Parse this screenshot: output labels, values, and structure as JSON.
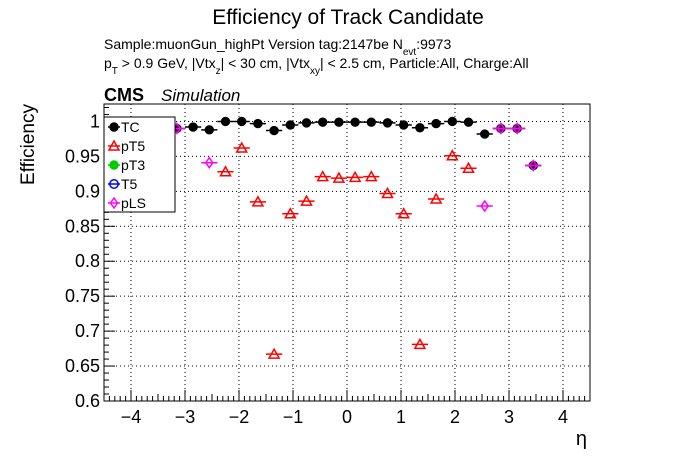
{
  "chart_data": {
    "type": "scatter",
    "title": "Efficiency of Track Candidate",
    "subtitle": {
      "line1_a": "Sample:muonGun_highPt   Version tag:2147be  N",
      "line1_sub": "evt",
      "line1_b": ":9973",
      "line2_p": "p",
      "line2_p_sub": "T",
      "line2_a": " > 0.9 GeV, |Vtx",
      "line2_z_sub": "z",
      "line2_b": "| < 30 cm, |Vtx",
      "line2_xy_sub": "xy",
      "line2_c": "| < 2.5 cm, Particle:All, Charge:All"
    },
    "cms_label": "CMS",
    "sim_label": "Simulation",
    "xlabel": "η",
    "ylabel": "Efficiency",
    "xlim": [
      -4.5,
      4.5
    ],
    "ylim": [
      0.6,
      1.025
    ],
    "x_ticks": [
      "−4",
      "−3",
      "−2",
      "−1",
      "0",
      "1",
      "2",
      "3",
      "4"
    ],
    "x_tick_values": [
      -4,
      -3,
      -2,
      -1,
      0,
      1,
      2,
      3,
      4
    ],
    "y_ticks": [
      "0.6",
      "0.65",
      "0.7",
      "0.75",
      "0.8",
      "0.85",
      "0.9",
      "0.95",
      "1"
    ],
    "y_tick_values": [
      0.6,
      0.65,
      0.7,
      0.75,
      0.8,
      0.85,
      0.9,
      0.95,
      1.0
    ],
    "grid": true,
    "legend_position": "top-left",
    "series": [
      {
        "name": "TC",
        "color": "#000000",
        "marker": "filled-circle",
        "points": [
          {
            "x": -3.15,
            "y": 0.99
          },
          {
            "x": -2.85,
            "y": 0.992
          },
          {
            "x": -2.55,
            "y": 0.988
          },
          {
            "x": -2.25,
            "y": 1.0
          },
          {
            "x": -1.95,
            "y": 1.0
          },
          {
            "x": -1.65,
            "y": 0.997
          },
          {
            "x": -1.35,
            "y": 0.987
          },
          {
            "x": -1.05,
            "y": 0.995
          },
          {
            "x": -0.75,
            "y": 0.998
          },
          {
            "x": -0.45,
            "y": 0.999
          },
          {
            "x": -0.15,
            "y": 0.999
          },
          {
            "x": 0.15,
            "y": 0.999
          },
          {
            "x": 0.45,
            "y": 0.999
          },
          {
            "x": 0.75,
            "y": 0.998
          },
          {
            "x": 1.05,
            "y": 0.995
          },
          {
            "x": 1.35,
            "y": 0.991
          },
          {
            "x": 1.65,
            "y": 0.997
          },
          {
            "x": 1.95,
            "y": 1.0
          },
          {
            "x": 2.25,
            "y": 0.999
          },
          {
            "x": 2.55,
            "y": 0.982
          },
          {
            "x": 2.85,
            "y": 0.99
          },
          {
            "x": 3.15,
            "y": 0.99
          },
          {
            "x": 3.45,
            "y": 0.937
          }
        ]
      },
      {
        "name": "pT5",
        "color": "#ff0000",
        "marker": "open-triangle",
        "points": [
          {
            "x": -2.25,
            "y": 0.928
          },
          {
            "x": -1.95,
            "y": 0.962
          },
          {
            "x": -1.65,
            "y": 0.885
          },
          {
            "x": -1.35,
            "y": 0.667
          },
          {
            "x": -1.05,
            "y": 0.868
          },
          {
            "x": -0.75,
            "y": 0.886
          },
          {
            "x": -0.45,
            "y": 0.921
          },
          {
            "x": -0.15,
            "y": 0.919
          },
          {
            "x": 0.15,
            "y": 0.92
          },
          {
            "x": 0.45,
            "y": 0.921
          },
          {
            "x": 0.75,
            "y": 0.897
          },
          {
            "x": 1.05,
            "y": 0.868
          },
          {
            "x": 1.35,
            "y": 0.681
          },
          {
            "x": 1.65,
            "y": 0.889
          },
          {
            "x": 1.95,
            "y": 0.951
          },
          {
            "x": 2.25,
            "y": 0.933
          }
        ]
      },
      {
        "name": "pT3",
        "color": "#00cc00",
        "marker": "filled-circle",
        "points": []
      },
      {
        "name": "T5",
        "color": "#0000ff",
        "marker": "open-circle",
        "points": []
      },
      {
        "name": "pLS",
        "color": "#ff00ff",
        "marker": "open-diamond",
        "points": [
          {
            "x": -3.15,
            "y": 0.99
          },
          {
            "x": -2.55,
            "y": 0.941
          },
          {
            "x": 2.55,
            "y": 0.879
          },
          {
            "x": 2.85,
            "y": 0.99
          },
          {
            "x": 3.15,
            "y": 0.99
          },
          {
            "x": 3.45,
            "y": 0.937
          }
        ]
      }
    ]
  }
}
